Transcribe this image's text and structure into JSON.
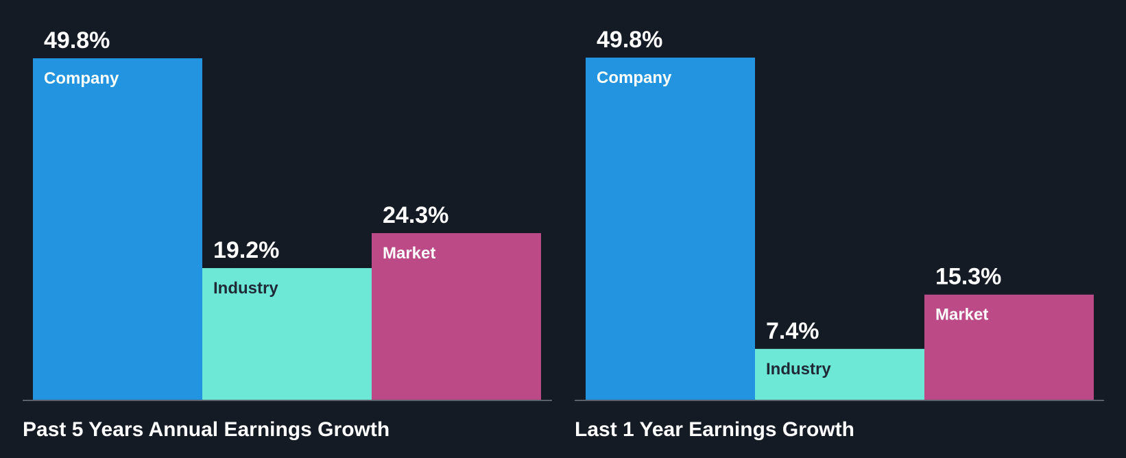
{
  "colors": {
    "background": "#151b24",
    "baseline": "#5a616b"
  },
  "chart_data": [
    {
      "type": "bar",
      "title": "Past 5 Years Annual Earnings Growth",
      "categories": [
        "Company",
        "Industry",
        "Market"
      ],
      "values": [
        49.8,
        19.2,
        24.3
      ],
      "value_labels": [
        "49.8%",
        "19.2%",
        "24.3%"
      ],
      "bar_colors": [
        "#2394e0",
        "#6ee8d6",
        "#bb4a86"
      ],
      "label_colors": [
        "#ffffff",
        "#1f2a36",
        "#ffffff"
      ],
      "unit": "%",
      "ylim": [
        0,
        49.8
      ],
      "grid": false,
      "legend": "none"
    },
    {
      "type": "bar",
      "title": "Last 1 Year Earnings Growth",
      "categories": [
        "Company",
        "Industry",
        "Market"
      ],
      "values": [
        49.8,
        7.4,
        15.3
      ],
      "value_labels": [
        "49.8%",
        "7.4%",
        "15.3%"
      ],
      "bar_colors": [
        "#2394e0",
        "#6ee8d6",
        "#bb4a86"
      ],
      "label_colors": [
        "#ffffff",
        "#1f2a36",
        "#ffffff"
      ],
      "unit": "%",
      "ylim": [
        0,
        49.8
      ],
      "grid": false,
      "legend": "none"
    }
  ]
}
